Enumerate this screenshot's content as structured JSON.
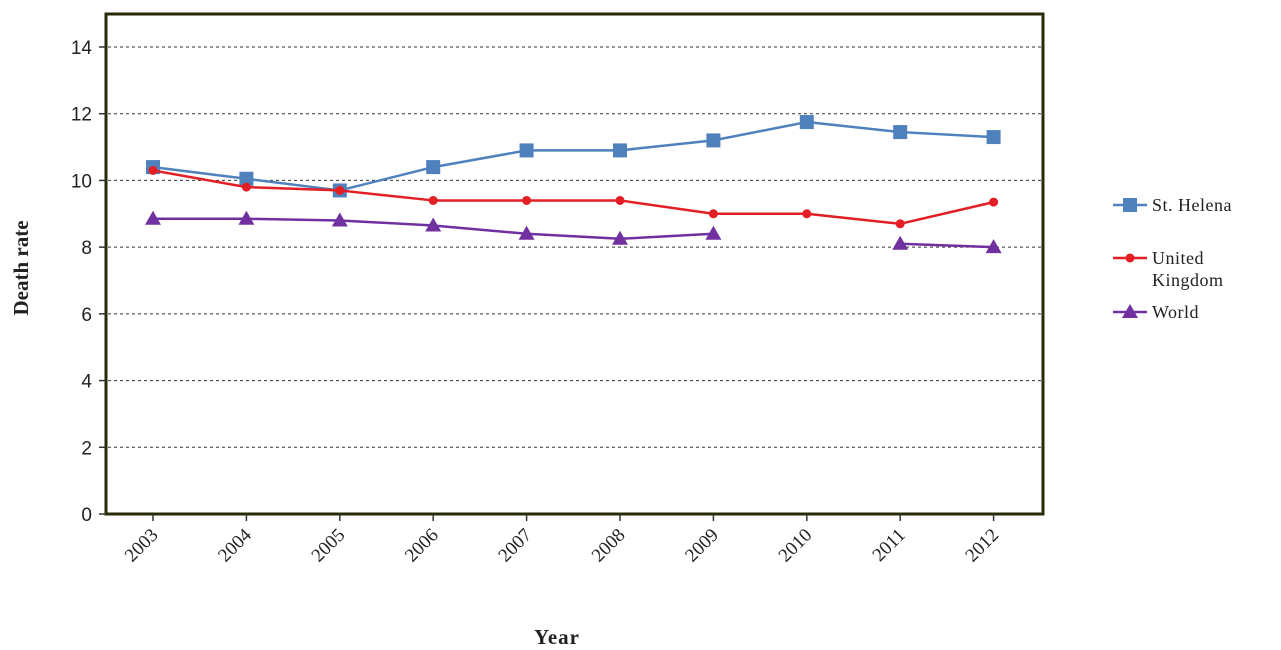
{
  "chart_data": {
    "type": "line",
    "xlabel": "Year",
    "ylabel": "Death rate",
    "ylim": [
      0,
      14
    ],
    "yticks": [
      0,
      2,
      4,
      6,
      8,
      10,
      12,
      14
    ],
    "grid": true,
    "legend_position": "right",
    "categories": [
      "2003",
      "2004",
      "2005",
      "2006",
      "2007",
      "2008",
      "2009",
      "2010",
      "2011",
      "2012"
    ],
    "series": [
      {
        "name": "St. Helena",
        "color": "#4F81BD",
        "marker": "square",
        "values": [
          10.4,
          10.05,
          9.7,
          10.4,
          10.9,
          10.9,
          11.2,
          11.75,
          11.45,
          11.3
        ]
      },
      {
        "name": "United Kingdom",
        "name_lines": [
          "United",
          "Kingdom"
        ],
        "color": "#E31E24",
        "marker": "circle",
        "values": [
          10.3,
          9.8,
          9.7,
          9.4,
          9.4,
          9.4,
          9.0,
          9.0,
          8.7,
          9.35
        ]
      },
      {
        "name": "World",
        "color": "#7030A0",
        "marker": "triangle",
        "values": [
          8.85,
          8.85,
          8.8,
          8.65,
          8.4,
          8.25,
          8.4,
          null,
          8.1,
          8.0
        ]
      }
    ]
  }
}
